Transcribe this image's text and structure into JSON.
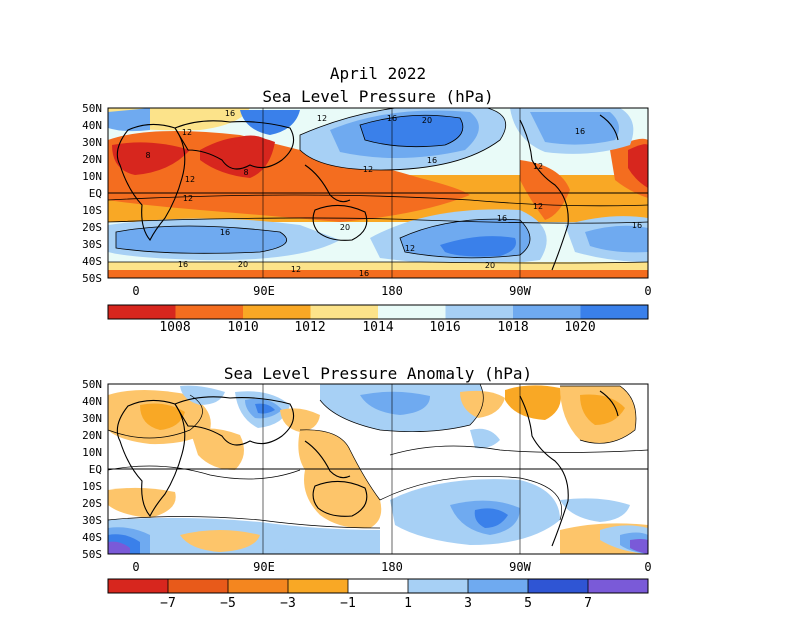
{
  "top_panel": {
    "title_line1": "April 2022",
    "title_line2": "Sea Level Pressure (hPa)",
    "lat_labels": [
      "50N",
      "40N",
      "30N",
      "20N",
      "10N",
      "EQ",
      "10S",
      "20S",
      "30S",
      "40S",
      "50S"
    ],
    "lon_labels": [
      "0",
      "90E",
      "180",
      "90W",
      "0"
    ],
    "contour_labels": [
      "16",
      "12",
      "12",
      "16",
      "20",
      "16",
      "12",
      "16",
      "8",
      "8",
      "12",
      "12",
      "12",
      "16",
      "16",
      "12",
      "20",
      "16",
      "12",
      "16",
      "20",
      "20",
      "12",
      "16"
    ],
    "colorbar_colors": [
      "#d7261e",
      "#f46d1f",
      "#f9a825",
      "#fce38a",
      "#e9fbf8",
      "#a7d0f5",
      "#6faaf0",
      "#3a80ea"
    ],
    "colorbar_labels": [
      "1008",
      "1010",
      "1012",
      "1014",
      "1016",
      "1018",
      "1020"
    ]
  },
  "bottom_panel": {
    "title": "Sea Level Pressure Anomaly (hPa)",
    "lat_labels": [
      "50N",
      "40N",
      "30N",
      "20N",
      "10N",
      "EQ",
      "10S",
      "20S",
      "30S",
      "40S",
      "50S"
    ],
    "lon_labels": [
      "0",
      "90E",
      "180",
      "90W",
      "0"
    ],
    "colorbar_colors": [
      "#d7261e",
      "#e85a1a",
      "#f4861f",
      "#f9a825",
      "#fdc56a",
      "#ffffff",
      "#a7d0f5",
      "#6faaf0",
      "#3a80ea",
      "#2f55d4",
      "#7a5ad8"
    ],
    "colorbar_labels": [
      "−7",
      "−5",
      "−3",
      "−1",
      "1",
      "3",
      "5",
      "7"
    ]
  }
}
